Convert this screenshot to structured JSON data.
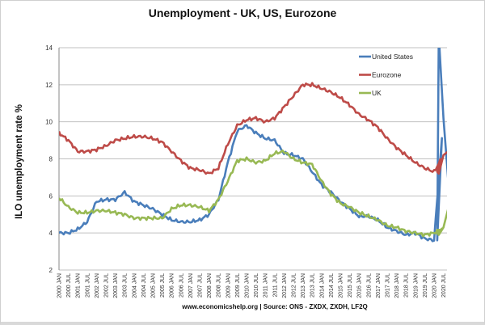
{
  "chart_data": {
    "type": "line",
    "title": "Unemployment - UK, US, Eurozone",
    "xlabel": "",
    "ylabel": "ILO unemployment rate %",
    "ylim": [
      2,
      14
    ],
    "yticks": [
      2,
      4,
      6,
      8,
      10,
      12,
      14
    ],
    "grid": true,
    "legend_position": "top-right inside",
    "categories": [
      "2000 JAN",
      "2000 JUL",
      "2001 JAN",
      "2001 JUL",
      "2002 JAN",
      "2002 JUL",
      "2003 JAN",
      "2003 JUL",
      "2004 JAN",
      "2004 JUL",
      "2005 JAN",
      "2005 JUL",
      "2006 JAN",
      "2006 JUL",
      "2007 JAN",
      "2007 JUL",
      "2008 JAN",
      "2008 JUL",
      "2009 JAN",
      "2009 JUL",
      "2010 JAN",
      "2010 JUL",
      "2011 JAN",
      "2011 JUL",
      "2012 JAN",
      "2012 JUL",
      "2013 JAN",
      "2013 JUL",
      "2014 JAN",
      "2014 JUL",
      "2015 JAN",
      "2015 JUL",
      "2016 JAN",
      "2016 JUL",
      "2017 JAN",
      "2017 JUL",
      "2018 JAN",
      "2018 JUL",
      "2019 JAN",
      "2019 JUL",
      "2020 JAN",
      "2020 JUL"
    ],
    "series": [
      {
        "name": "United States",
        "color": "#4a7ebb",
        "values": [
          4.0,
          4.0,
          4.2,
          4.6,
          5.7,
          5.8,
          5.8,
          6.2,
          5.7,
          5.5,
          5.3,
          5.0,
          4.7,
          4.6,
          4.6,
          4.7,
          5.0,
          5.8,
          7.8,
          9.5,
          9.8,
          9.4,
          9.1,
          9.0,
          8.3,
          8.2,
          8.0,
          7.3,
          6.6,
          6.2,
          5.7,
          5.3,
          4.9,
          4.9,
          4.7,
          4.3,
          4.1,
          3.9,
          4.0,
          3.7,
          3.6,
          10.2
        ],
        "extra": {
          "2020 APR": 14.7,
          "2020 OCT": 6.9
        }
      },
      {
        "name": "Eurozone",
        "color": "#be4b48",
        "values": [
          9.4,
          9.0,
          8.4,
          8.4,
          8.5,
          8.7,
          9.0,
          9.1,
          9.2,
          9.2,
          9.1,
          8.9,
          8.4,
          7.9,
          7.5,
          7.4,
          7.2,
          7.5,
          8.8,
          9.8,
          10.1,
          10.2,
          10.0,
          10.2,
          10.8,
          11.4,
          12.0,
          12.0,
          11.8,
          11.6,
          11.3,
          10.9,
          10.4,
          10.1,
          9.7,
          9.1,
          8.6,
          8.2,
          7.8,
          7.5,
          7.3,
          8.2
        ],
        "extra": {
          "2020 APR": 7.2,
          "2020 OCT": 8.4
        }
      },
      {
        "name": "UK",
        "color": "#98b954",
        "values": [
          5.9,
          5.4,
          5.1,
          5.1,
          5.2,
          5.2,
          5.1,
          5.0,
          4.8,
          4.8,
          4.8,
          4.8,
          5.3,
          5.5,
          5.5,
          5.4,
          5.2,
          5.8,
          6.8,
          7.9,
          8.0,
          7.8,
          7.9,
          8.3,
          8.4,
          8.0,
          7.8,
          7.7,
          6.8,
          6.1,
          5.6,
          5.4,
          5.1,
          4.9,
          4.7,
          4.4,
          4.3,
          4.1,
          4.0,
          3.9,
          4.0,
          4.3
        ],
        "extra": {
          "2020 APR": 3.9,
          "2020 OCT": 5.3
        }
      }
    ]
  },
  "header": {
    "title": "Unemployment - UK, US, Eurozone"
  },
  "axis": {
    "ylabel": "ILO unemployment rate %"
  },
  "legend": [
    {
      "label": "United States",
      "color": "#4a7ebb"
    },
    {
      "label": "Eurozone",
      "color": "#be4b48"
    },
    {
      "label": "UK",
      "color": "#98b954"
    }
  ],
  "footer": {
    "source": "www.economicshelp.org | Source: ONS - ZXDX, ZXDH, LF2Q"
  }
}
